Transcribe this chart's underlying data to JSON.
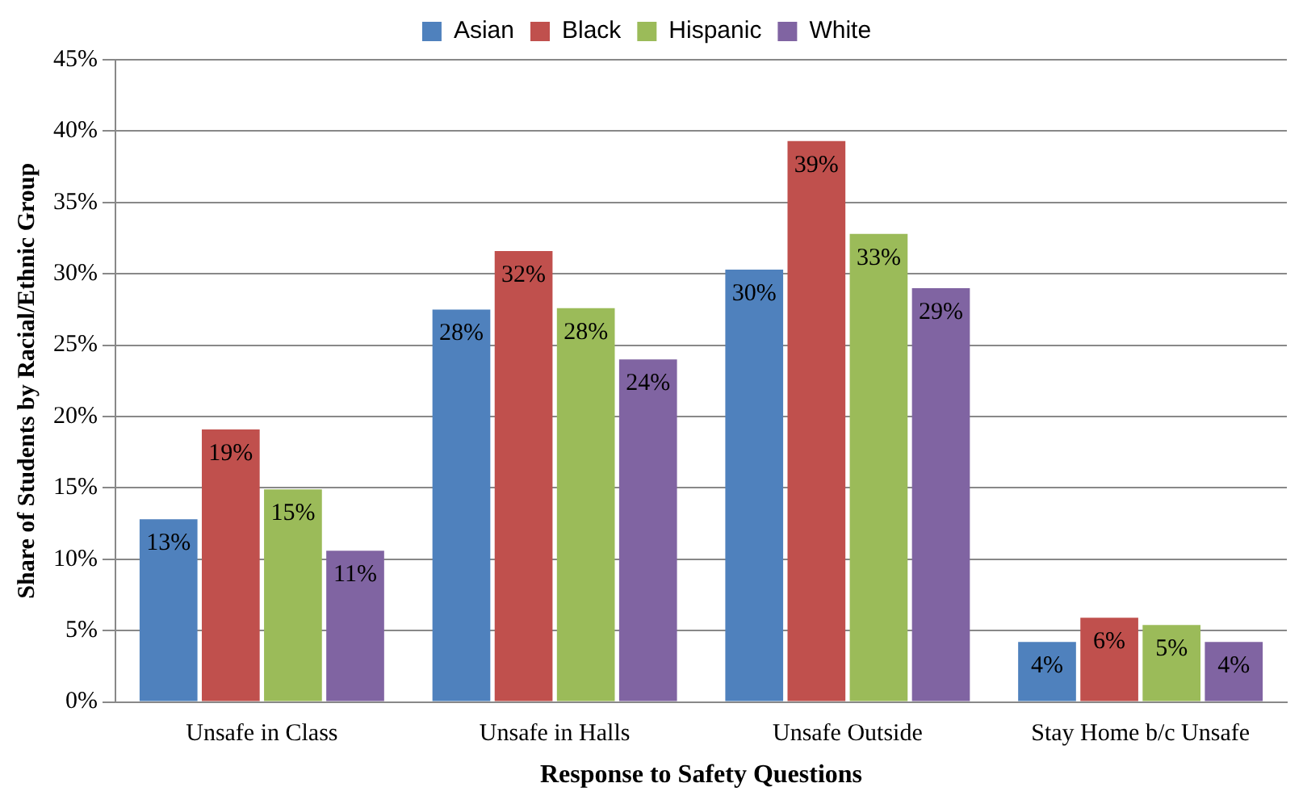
{
  "chart_data": {
    "type": "bar",
    "xlabel": "Response to Safety Questions",
    "ylabel": "Share of Students by Racial/Ethnic Group",
    "categories": [
      "Unsafe in Class",
      "Unsafe in Halls",
      "Unsafe Outside",
      "Stay Home b/c Unsafe"
    ],
    "series": [
      {
        "name": "Asian",
        "color": "#4f81bd",
        "values": [
          12.8,
          27.5,
          30.3,
          4.2
        ],
        "value_labels": [
          "13%",
          "28%",
          "30%",
          "4%"
        ]
      },
      {
        "name": "Black",
        "color": "#c0504d",
        "values": [
          19.1,
          31.6,
          39.3,
          5.9
        ],
        "value_labels": [
          "19%",
          "32%",
          "39%",
          "6%"
        ]
      },
      {
        "name": "Hispanic",
        "color": "#9bbb59",
        "values": [
          14.9,
          27.6,
          32.8,
          5.4
        ],
        "value_labels": [
          "15%",
          "28%",
          "33%",
          "5%"
        ]
      },
      {
        "name": "White",
        "color": "#8064a2",
        "values": [
          10.6,
          24.0,
          29.0,
          4.2
        ],
        "value_labels": [
          "11%",
          "24%",
          "29%",
          "4%"
        ]
      }
    ],
    "ylim": [
      0,
      45
    ],
    "yticks": [
      {
        "value": 0,
        "label": "0%"
      },
      {
        "value": 5,
        "label": "5%"
      },
      {
        "value": 10,
        "label": "10%"
      },
      {
        "value": 15,
        "label": "15%"
      },
      {
        "value": 20,
        "label": "20%"
      },
      {
        "value": 25,
        "label": "25%"
      },
      {
        "value": 30,
        "label": "30%"
      },
      {
        "value": 35,
        "label": "35%"
      },
      {
        "value": 40,
        "label": "40%"
      },
      {
        "value": 45,
        "label": "45%"
      }
    ],
    "grid": "y",
    "legend": "top"
  }
}
